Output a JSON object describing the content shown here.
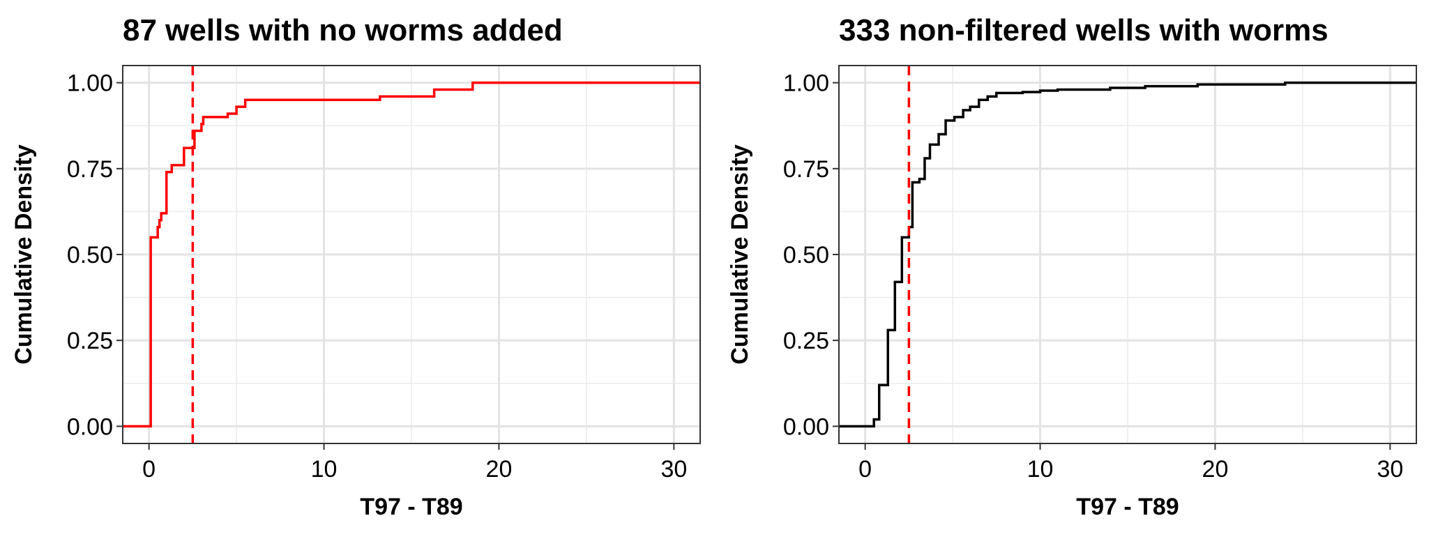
{
  "chart_data": [
    {
      "type": "line",
      "title": "87 wells with no worms added",
      "xlabel": "T97 - T89",
      "ylabel": "Cumulative Density",
      "xlim": [
        -1.5,
        31.5
      ],
      "ylim": [
        -0.05,
        1.05
      ],
      "x_ticks": [
        0,
        10,
        20,
        30
      ],
      "x_tick_labels": [
        "0",
        "10",
        "20",
        "30"
      ],
      "y_ticks": [
        0,
        0.25,
        0.5,
        0.75,
        1
      ],
      "y_tick_labels": [
        "0.00",
        "0.25",
        "0.50",
        "0.75",
        "1.00"
      ],
      "grid": true,
      "vline": {
        "x": 2.5,
        "style": "dashed",
        "color": "#ff0000"
      },
      "series": [
        {
          "color": "#ff0000",
          "style": "step",
          "x": [
            -1.5,
            0.1,
            0.5,
            0.6,
            0.7,
            1.0,
            1.3,
            2.0,
            2.6,
            3.0,
            3.1,
            4.5,
            5.0,
            5.5,
            13.2,
            16.3,
            18.5,
            31.5
          ],
          "y": [
            0,
            0.55,
            0.58,
            0.6,
            0.62,
            0.74,
            0.76,
            0.81,
            0.86,
            0.88,
            0.9,
            0.91,
            0.93,
            0.95,
            0.96,
            0.98,
            1.0,
            1.0
          ]
        }
      ]
    },
    {
      "type": "line",
      "title": "333 non-filtered wells with worms",
      "xlabel": "T97 - T89",
      "ylabel": "Cumulative Density",
      "xlim": [
        -1.5,
        31.5
      ],
      "ylim": [
        -0.05,
        1.05
      ],
      "x_ticks": [
        0,
        10,
        20,
        30
      ],
      "x_tick_labels": [
        "0",
        "10",
        "20",
        "30"
      ],
      "y_ticks": [
        0,
        0.25,
        0.5,
        0.75,
        1
      ],
      "y_tick_labels": [
        "0.00",
        "0.25",
        "0.50",
        "0.75",
        "1.00"
      ],
      "grid": true,
      "vline": {
        "x": 2.5,
        "style": "dashed",
        "color": "#ff0000"
      },
      "series": [
        {
          "color": "#000000",
          "style": "step",
          "x": [
            -1.5,
            0.5,
            0.8,
            1.3,
            1.7,
            2.1,
            2.5,
            2.7,
            3.1,
            3.4,
            3.7,
            4.2,
            4.6,
            5.1,
            5.6,
            6.0,
            6.5,
            7.0,
            7.5,
            8.0,
            9.0,
            10.0,
            11.0,
            14.0,
            16.0,
            19.0,
            24.0,
            31.5
          ],
          "y": [
            0,
            0.02,
            0.12,
            0.28,
            0.42,
            0.55,
            0.58,
            0.71,
            0.72,
            0.78,
            0.82,
            0.85,
            0.89,
            0.9,
            0.92,
            0.93,
            0.95,
            0.96,
            0.97,
            0.97,
            0.973,
            0.977,
            0.98,
            0.985,
            0.99,
            0.995,
            1.0,
            1.0
          ]
        }
      ]
    }
  ]
}
